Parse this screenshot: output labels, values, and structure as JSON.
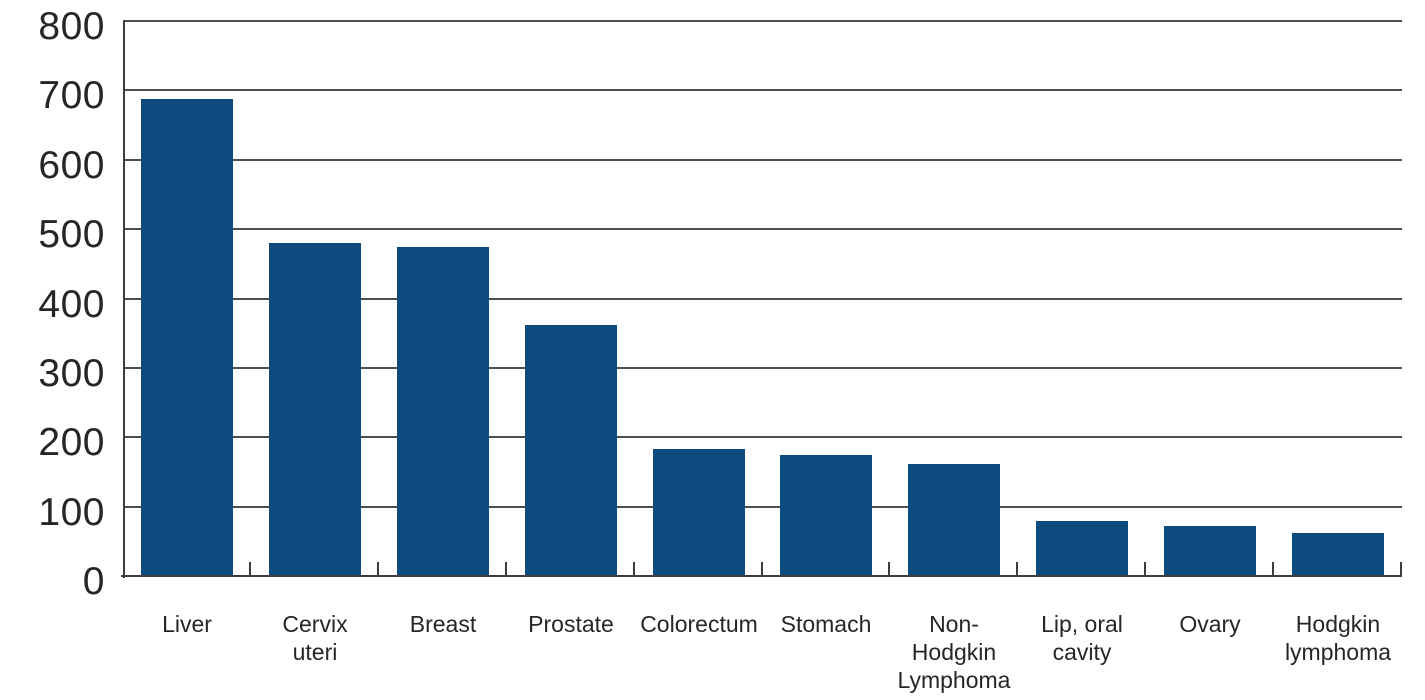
{
  "chart_data": {
    "type": "bar",
    "title": "",
    "xlabel": "",
    "ylabel": "",
    "categories": [
      "Liver",
      "Cervix\nuteri",
      "Breast",
      "Prostate",
      "Colorectum",
      "Stomach",
      "Non-\nHodgkin\nLymphoma",
      "Lip, oral\ncavity",
      "Ovary",
      "Hodgkin\nlymphoma"
    ],
    "values": [
      687,
      480,
      474,
      362,
      183,
      174,
      162,
      79,
      72,
      62
    ],
    "ylim": [
      0,
      800
    ],
    "yticks": [
      0,
      100,
      200,
      300,
      400,
      500,
      600,
      700,
      800
    ],
    "grid": "horizontal",
    "legend": "none",
    "colors": {
      "bar": "#0d4a7e",
      "gridline": "#4f4f4f",
      "axis": "#3d3d3d",
      "text": "#262626"
    }
  }
}
